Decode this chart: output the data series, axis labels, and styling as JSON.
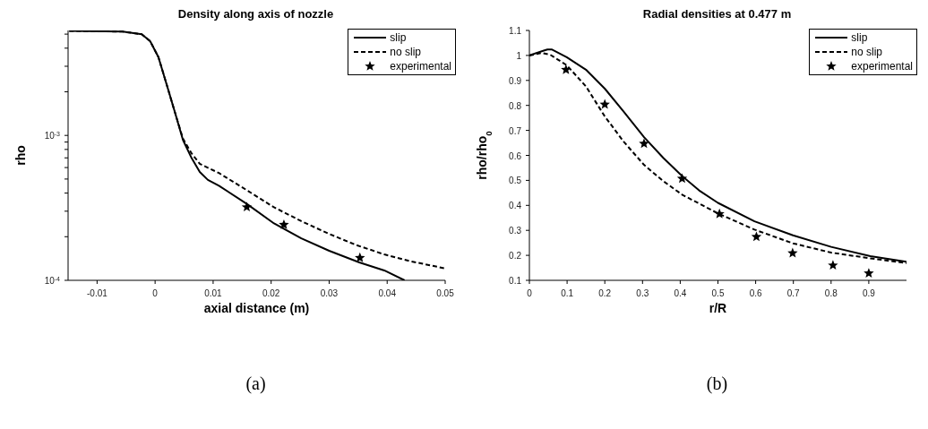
{
  "chart_data": [
    {
      "type": "line",
      "title": "Density along axis of nozzle",
      "xlabel": "axial distance (m)",
      "ylabel": "rho",
      "log": "y",
      "legend": "top right",
      "grid": false,
      "xlim": [
        -0.015,
        0.05
      ],
      "xticks": [
        -0.01,
        0,
        0.01,
        0.02,
        0.03,
        0.04,
        0.05
      ],
      "ylim": [
        0.0001,
        0.0053
      ],
      "yticks": [
        {
          "value": 0.0001,
          "label": "10$^{-4}$"
        },
        {
          "value": 0.0002,
          "label": null
        },
        {
          "value": 0.0003,
          "label": null
        },
        {
          "value": 0.0004,
          "label": null
        },
        {
          "value": 0.0005,
          "label": null
        },
        {
          "value": 0.0006,
          "label": null
        },
        {
          "value": 0.0007,
          "label": null
        },
        {
          "value": 0.0008,
          "label": null
        },
        {
          "value": 0.0009,
          "label": null
        },
        {
          "value": 0.001,
          "label": "10$^{-3}$"
        },
        {
          "value": 0.002,
          "label": null
        },
        {
          "value": 0.003,
          "label": null
        },
        {
          "value": 0.004,
          "label": null
        },
        {
          "value": 0.005,
          "label": null
        }
      ],
      "annotations": [
        "(a)"
      ],
      "series": [
        {
          "name": "slip",
          "color": "#000000",
          "line_style": "solid",
          "marker": "none",
          "x": [
            -0.0148,
            -0.0056,
            -0.0023,
            -0.00085,
            0.00057,
            0.002,
            0.0034,
            0.0048,
            0.0063,
            0.0077,
            0.0091,
            0.011,
            0.0158,
            0.0205,
            0.0252,
            0.03,
            0.0352,
            0.0395,
            0.043
          ],
          "values": [
            0.00527,
            0.0052,
            0.00499,
            0.00447,
            0.00347,
            0.00224,
            0.00145,
            0.00093,
            0.000697,
            0.00056,
            0.000493,
            0.00045,
            0.000337,
            0.000247,
            0.000195,
            0.00016,
            0.000133,
            0.000117,
            0.0001
          ]
        },
        {
          "name": "no slip",
          "color": "#000000",
          "line_style": "dashed",
          "marker": "none",
          "x": [
            -0.0148,
            -0.0056,
            -0.0023,
            -0.00085,
            0.00057,
            0.002,
            0.0034,
            0.0048,
            0.0063,
            0.0077,
            0.011,
            0.0158,
            0.0205,
            0.0252,
            0.03,
            0.0347,
            0.0395,
            0.0442,
            0.0499
          ],
          "values": [
            0.00527,
            0.0052,
            0.00499,
            0.00447,
            0.00347,
            0.00224,
            0.00145,
            0.00095,
            0.00075,
            0.000637,
            0.00055,
            0.000419,
            0.000319,
            0.000256,
            0.000209,
            0.000175,
            0.000151,
            0.000135,
            0.000121
          ]
        },
        {
          "name": "experimental",
          "type": "scatter",
          "color": "#000000",
          "marker": "star",
          "x": [
            0.0158,
            0.0222,
            0.0353
          ],
          "values": [
            0.00032,
            0.000242,
            0.000143
          ]
        }
      ]
    },
    {
      "type": "line",
      "title": "Radial densities at 0.477 m",
      "xlabel": "r/R",
      "ylabel": "rho/rho$_{0}$",
      "legend": "top right",
      "grid": false,
      "xlim": [
        0,
        1
      ],
      "xticks": [
        0,
        0.1,
        0.2,
        0.3,
        0.4,
        0.5,
        0.6,
        0.7,
        0.8,
        0.9
      ],
      "ylim": [
        0.1,
        1.1
      ],
      "yticks": [
        0.1,
        0.2,
        0.3,
        0.4,
        0.5,
        0.6,
        0.7,
        0.8,
        0.9,
        1,
        1.1
      ],
      "annotations": [
        "(b)"
      ],
      "series": [
        {
          "name": "slip",
          "color": "#000000",
          "line_style": "solid",
          "marker": "none",
          "x": [
            0,
            0.04,
            0.048,
            0.059,
            0.099,
            0.15,
            0.2,
            0.25,
            0.304,
            0.355,
            0.406,
            0.45,
            0.5,
            0.597,
            0.699,
            0.8,
            0.904,
            1.0
          ],
          "values": [
            1.0,
            1.02,
            1.024,
            1.024,
            0.993,
            0.943,
            0.867,
            0.775,
            0.673,
            0.59,
            0.516,
            0.46,
            0.41,
            0.336,
            0.28,
            0.234,
            0.197,
            0.174
          ]
        },
        {
          "name": "no slip",
          "color": "#000000",
          "line_style": "dashed",
          "marker": "none",
          "x": [
            0,
            0.033,
            0.055,
            0.099,
            0.15,
            0.2,
            0.25,
            0.304,
            0.355,
            0.406,
            0.5,
            0.597,
            0.699,
            0.8,
            0.904,
            1.0
          ],
          "values": [
            1.0,
            1.01,
            1.003,
            0.961,
            0.876,
            0.756,
            0.655,
            0.562,
            0.497,
            0.442,
            0.368,
            0.303,
            0.248,
            0.211,
            0.188,
            0.169
          ]
        },
        {
          "name": "experimental",
          "type": "scatter",
          "color": "#000000",
          "marker": "star",
          "x": [
            0.097,
            0.2,
            0.304,
            0.405,
            0.504,
            0.602,
            0.698,
            0.805,
            0.9
          ],
          "values": [
            0.943,
            0.804,
            0.647,
            0.507,
            0.366,
            0.274,
            0.209,
            0.16,
            0.128
          ]
        }
      ]
    }
  ]
}
